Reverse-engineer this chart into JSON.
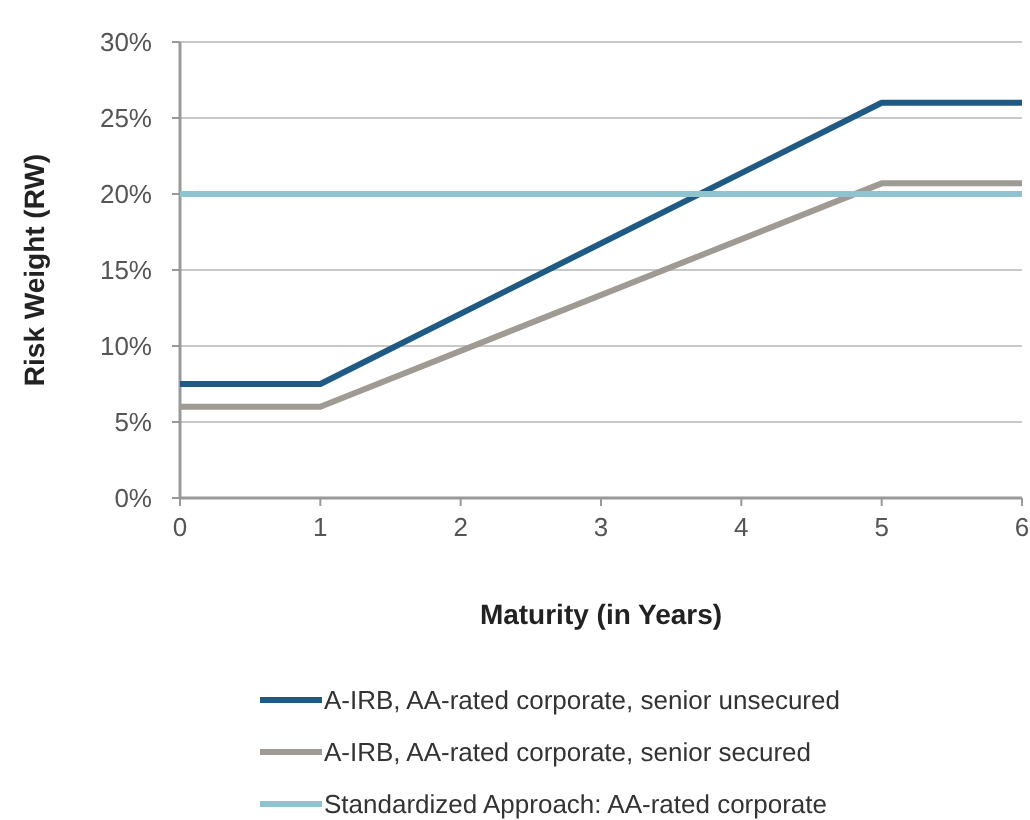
{
  "chart_data": {
    "type": "line",
    "xlabel": "Maturity (in Years)",
    "ylabel": "Risk Weight (RW)",
    "x": [
      0,
      1,
      5,
      6
    ],
    "series": [
      {
        "name": "A-IRB, AA-rated corporate, senior unsecured",
        "color": "#1f5a85",
        "values": [
          7.5,
          7.5,
          26,
          26
        ]
      },
      {
        "name": "A-IRB, AA-rated corporate, senior secured",
        "color": "#a09a95",
        "values": [
          6,
          6,
          20.7,
          20.7
        ]
      },
      {
        "name": "Standardized Approach: AA-rated corporate",
        "color": "#8fc3cf",
        "values": [
          20,
          20,
          20,
          20
        ]
      }
    ],
    "xlim": [
      0,
      6
    ],
    "xticks": [
      0,
      1,
      2,
      3,
      4,
      5,
      6
    ],
    "ylim": [
      0,
      30
    ],
    "yticks": [
      {
        "value": 0,
        "label": "0%"
      },
      {
        "value": 5,
        "label": "5%"
      },
      {
        "value": 10,
        "label": "10%"
      },
      {
        "value": 15,
        "label": "15%"
      },
      {
        "value": 20,
        "label": "20%"
      },
      {
        "value": 25,
        "label": "25%"
      },
      {
        "value": 30,
        "label": "30%"
      }
    ],
    "grid": "y",
    "legend": "bottom",
    "marker": "none",
    "line_style": "solid"
  }
}
